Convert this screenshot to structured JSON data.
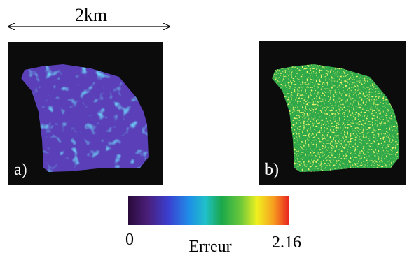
{
  "scale_bar": {
    "label": "2km"
  },
  "panels": [
    {
      "label": "a)"
    },
    {
      "label": "b)"
    }
  ],
  "colorbar": {
    "min": "0",
    "label": "Erreur",
    "max": "2.16"
  }
}
